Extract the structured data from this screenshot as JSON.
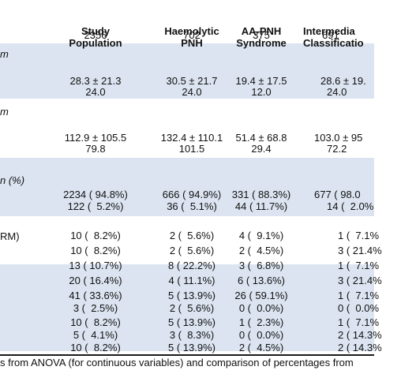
{
  "columns": [
    {
      "line1": "Study",
      "line2": "Population",
      "n": "2356"
    },
    {
      "line1": "Haemolytic",
      "line2": "PNH",
      "n": "702"
    },
    {
      "line1": "AA-PNH",
      "line2": "Syndrome",
      "n": "375"
    },
    {
      "line1": "Intermedia",
      "line2": "Classificatio",
      "n": "691"
    }
  ],
  "sections": [
    {
      "label": "m",
      "rows": [
        [
          "28.3 ± 21.3",
          "30.5 ± 21.7",
          "19.4 ± 17.5",
          "28.6 ± 19."
        ],
        [
          "24.0",
          "24.0",
          "12.0",
          "24.0"
        ]
      ]
    },
    {
      "label": "m",
      "rows": [
        [
          "112.9 ± 105.5",
          "132.4 ± 110.1",
          "51.4 ± 68.8",
          "103.0 ± 95"
        ],
        [
          "79.8",
          "101.5",
          "29.4",
          "72.2"
        ]
      ]
    },
    {
      "label": "n (%)",
      "rows": [
        [
          "2234 ( 94.8%)",
          "666 ( 94.9%)",
          "331 ( 88.3%)",
          "677 ( 98.0"
        ],
        [
          "122 (  5.2%)",
          "36 (  5.1%)",
          "44 ( 11.7%)",
          "14 (  2.0%"
        ]
      ]
    },
    {
      "label": "RM)",
      "rows": [
        [
          "10 (  8.2%)",
          "2 (  5.6%)",
          "4 (  9.1%)",
          "1 (  7.1%"
        ],
        [
          "10 (  8.2%)",
          "2 (  5.6%)",
          "2 (  4.5%)",
          "3 ( 21.4%"
        ],
        [
          "13 ( 10.7%)",
          "8 ( 22.2%)",
          "3 (  6.8%)",
          "1 (  7.1%"
        ],
        [
          "20 ( 16.4%)",
          "4 ( 11.1%)",
          "6 ( 13.6%)",
          "3 ( 21.4%"
        ],
        [
          "41 ( 33.6%)",
          "5 ( 13.9%)",
          "26 ( 59.1%)",
          "1 (  7.1%"
        ],
        [
          "3 (  2.5%)",
          "2 (  5.6%)",
          "0 (  0.0%)",
          "0 (  0.0%"
        ],
        [
          "10 (  8.2%)",
          "5 ( 13.9%)",
          "1 (  2.3%)",
          "1 (  7.1%"
        ],
        [
          "5 (  4.1%)",
          "3 (  8.3%)",
          "0 (  0.0%)",
          "2 ( 14.3%"
        ],
        [
          "10 (  8.2%)",
          "5 ( 13.9%)",
          "2 (  4.5%)",
          "2 ( 14.3%"
        ]
      ]
    }
  ],
  "footnote": "s from ANOVA (for continuous variables) and comparison of percentages from"
}
